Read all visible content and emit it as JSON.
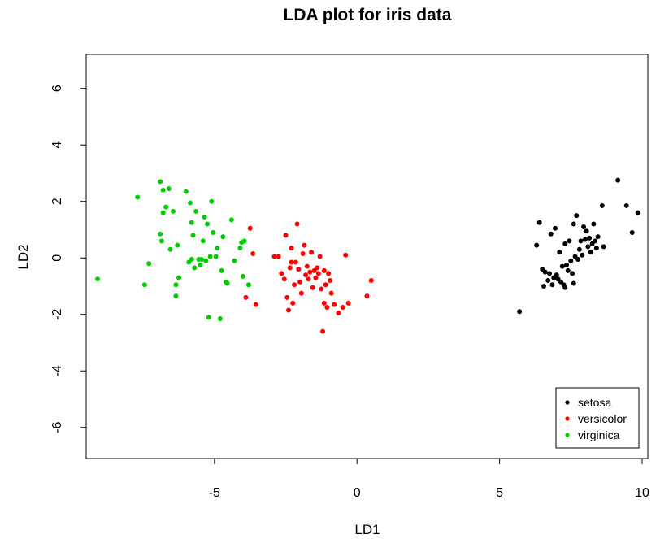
{
  "chart_data": {
    "type": "scatter",
    "title": "LDA plot for iris data",
    "xlabel": "LD1",
    "ylabel": "LD2",
    "xlim": [
      -9.5,
      10.2
    ],
    "ylim": [
      -7.1,
      7.2
    ],
    "x_ticks": [
      -5,
      0,
      5,
      10
    ],
    "y_ticks": [
      -6,
      -4,
      -2,
      0,
      2,
      4,
      6
    ],
    "x_tick_labels": [
      "-5",
      "0",
      "5",
      "10"
    ],
    "y_tick_labels": [
      "-6",
      "-4",
      "-2",
      "0",
      "2",
      "4",
      "6"
    ],
    "grid": false,
    "legend_position": "bottom-right",
    "series": [
      {
        "name": "setosa",
        "color": "#000000",
        "points": [
          [
            5.7,
            -1.9
          ],
          [
            6.4,
            1.25
          ],
          [
            6.3,
            0.45
          ],
          [
            6.5,
            -0.4
          ],
          [
            6.55,
            -1.0
          ],
          [
            6.6,
            -0.5
          ],
          [
            6.7,
            -0.8
          ],
          [
            6.75,
            -0.55
          ],
          [
            6.8,
            0.85
          ],
          [
            6.85,
            -0.95
          ],
          [
            6.9,
            -0.7
          ],
          [
            6.95,
            1.05
          ],
          [
            7.0,
            -0.6
          ],
          [
            7.05,
            -0.75
          ],
          [
            7.1,
            0.2
          ],
          [
            7.15,
            -0.85
          ],
          [
            7.2,
            -0.3
          ],
          [
            7.25,
            -0.95
          ],
          [
            7.3,
            -1.05
          ],
          [
            7.3,
            0.5
          ],
          [
            7.35,
            -0.25
          ],
          [
            7.4,
            -0.45
          ],
          [
            7.45,
            0.6
          ],
          [
            7.5,
            -0.1
          ],
          [
            7.55,
            -0.55
          ],
          [
            7.6,
            -0.9
          ],
          [
            7.6,
            1.2
          ],
          [
            7.65,
            0.05
          ],
          [
            7.7,
            1.5
          ],
          [
            7.75,
            -0.05
          ],
          [
            7.8,
            0.3
          ],
          [
            7.85,
            0.6
          ],
          [
            7.9,
            0.1
          ],
          [
            7.95,
            1.1
          ],
          [
            8.0,
            0.65
          ],
          [
            8.05,
            0.95
          ],
          [
            8.1,
            0.4
          ],
          [
            8.15,
            0.7
          ],
          [
            8.2,
            0.2
          ],
          [
            8.25,
            0.5
          ],
          [
            8.3,
            1.2
          ],
          [
            8.35,
            0.6
          ],
          [
            8.45,
            0.75
          ],
          [
            8.6,
            1.85
          ],
          [
            8.65,
            0.4
          ],
          [
            9.15,
            2.75
          ],
          [
            9.45,
            1.85
          ],
          [
            9.85,
            1.6
          ],
          [
            9.65,
            0.9
          ],
          [
            8.4,
            0.35
          ]
        ]
      },
      {
        "name": "versicolor",
        "color": "#ff0000",
        "points": [
          [
            -3.75,
            1.05
          ],
          [
            -3.55,
            -1.65
          ],
          [
            -3.65,
            0.15
          ],
          [
            -3.9,
            -1.4
          ],
          [
            -2.9,
            0.05
          ],
          [
            -2.75,
            0.05
          ],
          [
            -2.65,
            -0.55
          ],
          [
            -2.55,
            -0.75
          ],
          [
            -2.5,
            0.8
          ],
          [
            -2.45,
            -1.4
          ],
          [
            -2.4,
            -1.85
          ],
          [
            -2.35,
            -0.35
          ],
          [
            -2.3,
            0.35
          ],
          [
            -2.25,
            -1.6
          ],
          [
            -2.2,
            -0.95
          ],
          [
            -2.15,
            -0.15
          ],
          [
            -2.1,
            1.2
          ],
          [
            -2.05,
            -0.4
          ],
          [
            -2.0,
            -0.85
          ],
          [
            -1.95,
            -1.25
          ],
          [
            -1.9,
            0.15
          ],
          [
            -1.85,
            0.45
          ],
          [
            -1.8,
            -0.6
          ],
          [
            -1.75,
            -0.3
          ],
          [
            -1.7,
            -0.75
          ],
          [
            -1.65,
            -0.5
          ],
          [
            -1.6,
            0.2
          ],
          [
            -1.55,
            -1.05
          ],
          [
            -1.5,
            -0.45
          ],
          [
            -1.45,
            -0.7
          ],
          [
            -1.4,
            -0.35
          ],
          [
            -1.35,
            -0.55
          ],
          [
            -1.3,
            0.05
          ],
          [
            -1.25,
            -1.1
          ],
          [
            -1.2,
            -2.6
          ],
          [
            -1.15,
            -1.6
          ],
          [
            -1.1,
            -0.95
          ],
          [
            -1.05,
            -1.75
          ],
          [
            -1.0,
            -0.55
          ],
          [
            -0.95,
            -0.8
          ],
          [
            -0.9,
            -1.25
          ],
          [
            -0.8,
            -1.65
          ],
          [
            -0.65,
            -1.95
          ],
          [
            -0.5,
            -1.75
          ],
          [
            -0.4,
            0.1
          ],
          [
            -0.3,
            -1.6
          ],
          [
            0.5,
            -0.8
          ],
          [
            0.35,
            -1.35
          ],
          [
            -2.3,
            -0.15
          ],
          [
            -1.15,
            -0.45
          ]
        ]
      },
      {
        "name": "virginica",
        "color": "#00cd00",
        "points": [
          [
            -9.1,
            -0.75
          ],
          [
            -7.7,
            2.15
          ],
          [
            -7.45,
            -0.95
          ],
          [
            -7.3,
            -0.2
          ],
          [
            -6.9,
            2.7
          ],
          [
            -6.9,
            0.85
          ],
          [
            -6.85,
            0.6
          ],
          [
            -6.8,
            1.6
          ],
          [
            -6.8,
            2.4
          ],
          [
            -6.7,
            1.8
          ],
          [
            -6.6,
            2.45
          ],
          [
            -6.55,
            0.3
          ],
          [
            -6.45,
            1.65
          ],
          [
            -6.35,
            -1.35
          ],
          [
            -6.35,
            -0.95
          ],
          [
            -6.3,
            0.45
          ],
          [
            -6.25,
            -0.7
          ],
          [
            -6.0,
            2.35
          ],
          [
            -5.9,
            -0.15
          ],
          [
            -5.85,
            1.95
          ],
          [
            -5.8,
            1.25
          ],
          [
            -5.75,
            0.8
          ],
          [
            -5.7,
            -0.35
          ],
          [
            -5.65,
            1.65
          ],
          [
            -5.55,
            -0.05
          ],
          [
            -5.5,
            -0.25
          ],
          [
            -5.45,
            -0.05
          ],
          [
            -5.4,
            0.6
          ],
          [
            -5.35,
            1.45
          ],
          [
            -5.3,
            -0.1
          ],
          [
            -5.25,
            1.2
          ],
          [
            -5.2,
            -2.1
          ],
          [
            -5.15,
            0.05
          ],
          [
            -5.1,
            2.0
          ],
          [
            -5.05,
            0.9
          ],
          [
            -4.95,
            0.05
          ],
          [
            -4.9,
            0.35
          ],
          [
            -4.8,
            -2.15
          ],
          [
            -4.75,
            -0.45
          ],
          [
            -4.7,
            0.75
          ],
          [
            -4.6,
            -0.85
          ],
          [
            -4.55,
            -0.9
          ],
          [
            -4.4,
            1.35
          ],
          [
            -4.3,
            -0.1
          ],
          [
            -4.1,
            0.35
          ],
          [
            -4.05,
            0.55
          ],
          [
            -3.95,
            0.6
          ],
          [
            -3.8,
            -0.95
          ],
          [
            -4.0,
            -0.65
          ],
          [
            -5.8,
            -0.05
          ]
        ]
      }
    ]
  }
}
